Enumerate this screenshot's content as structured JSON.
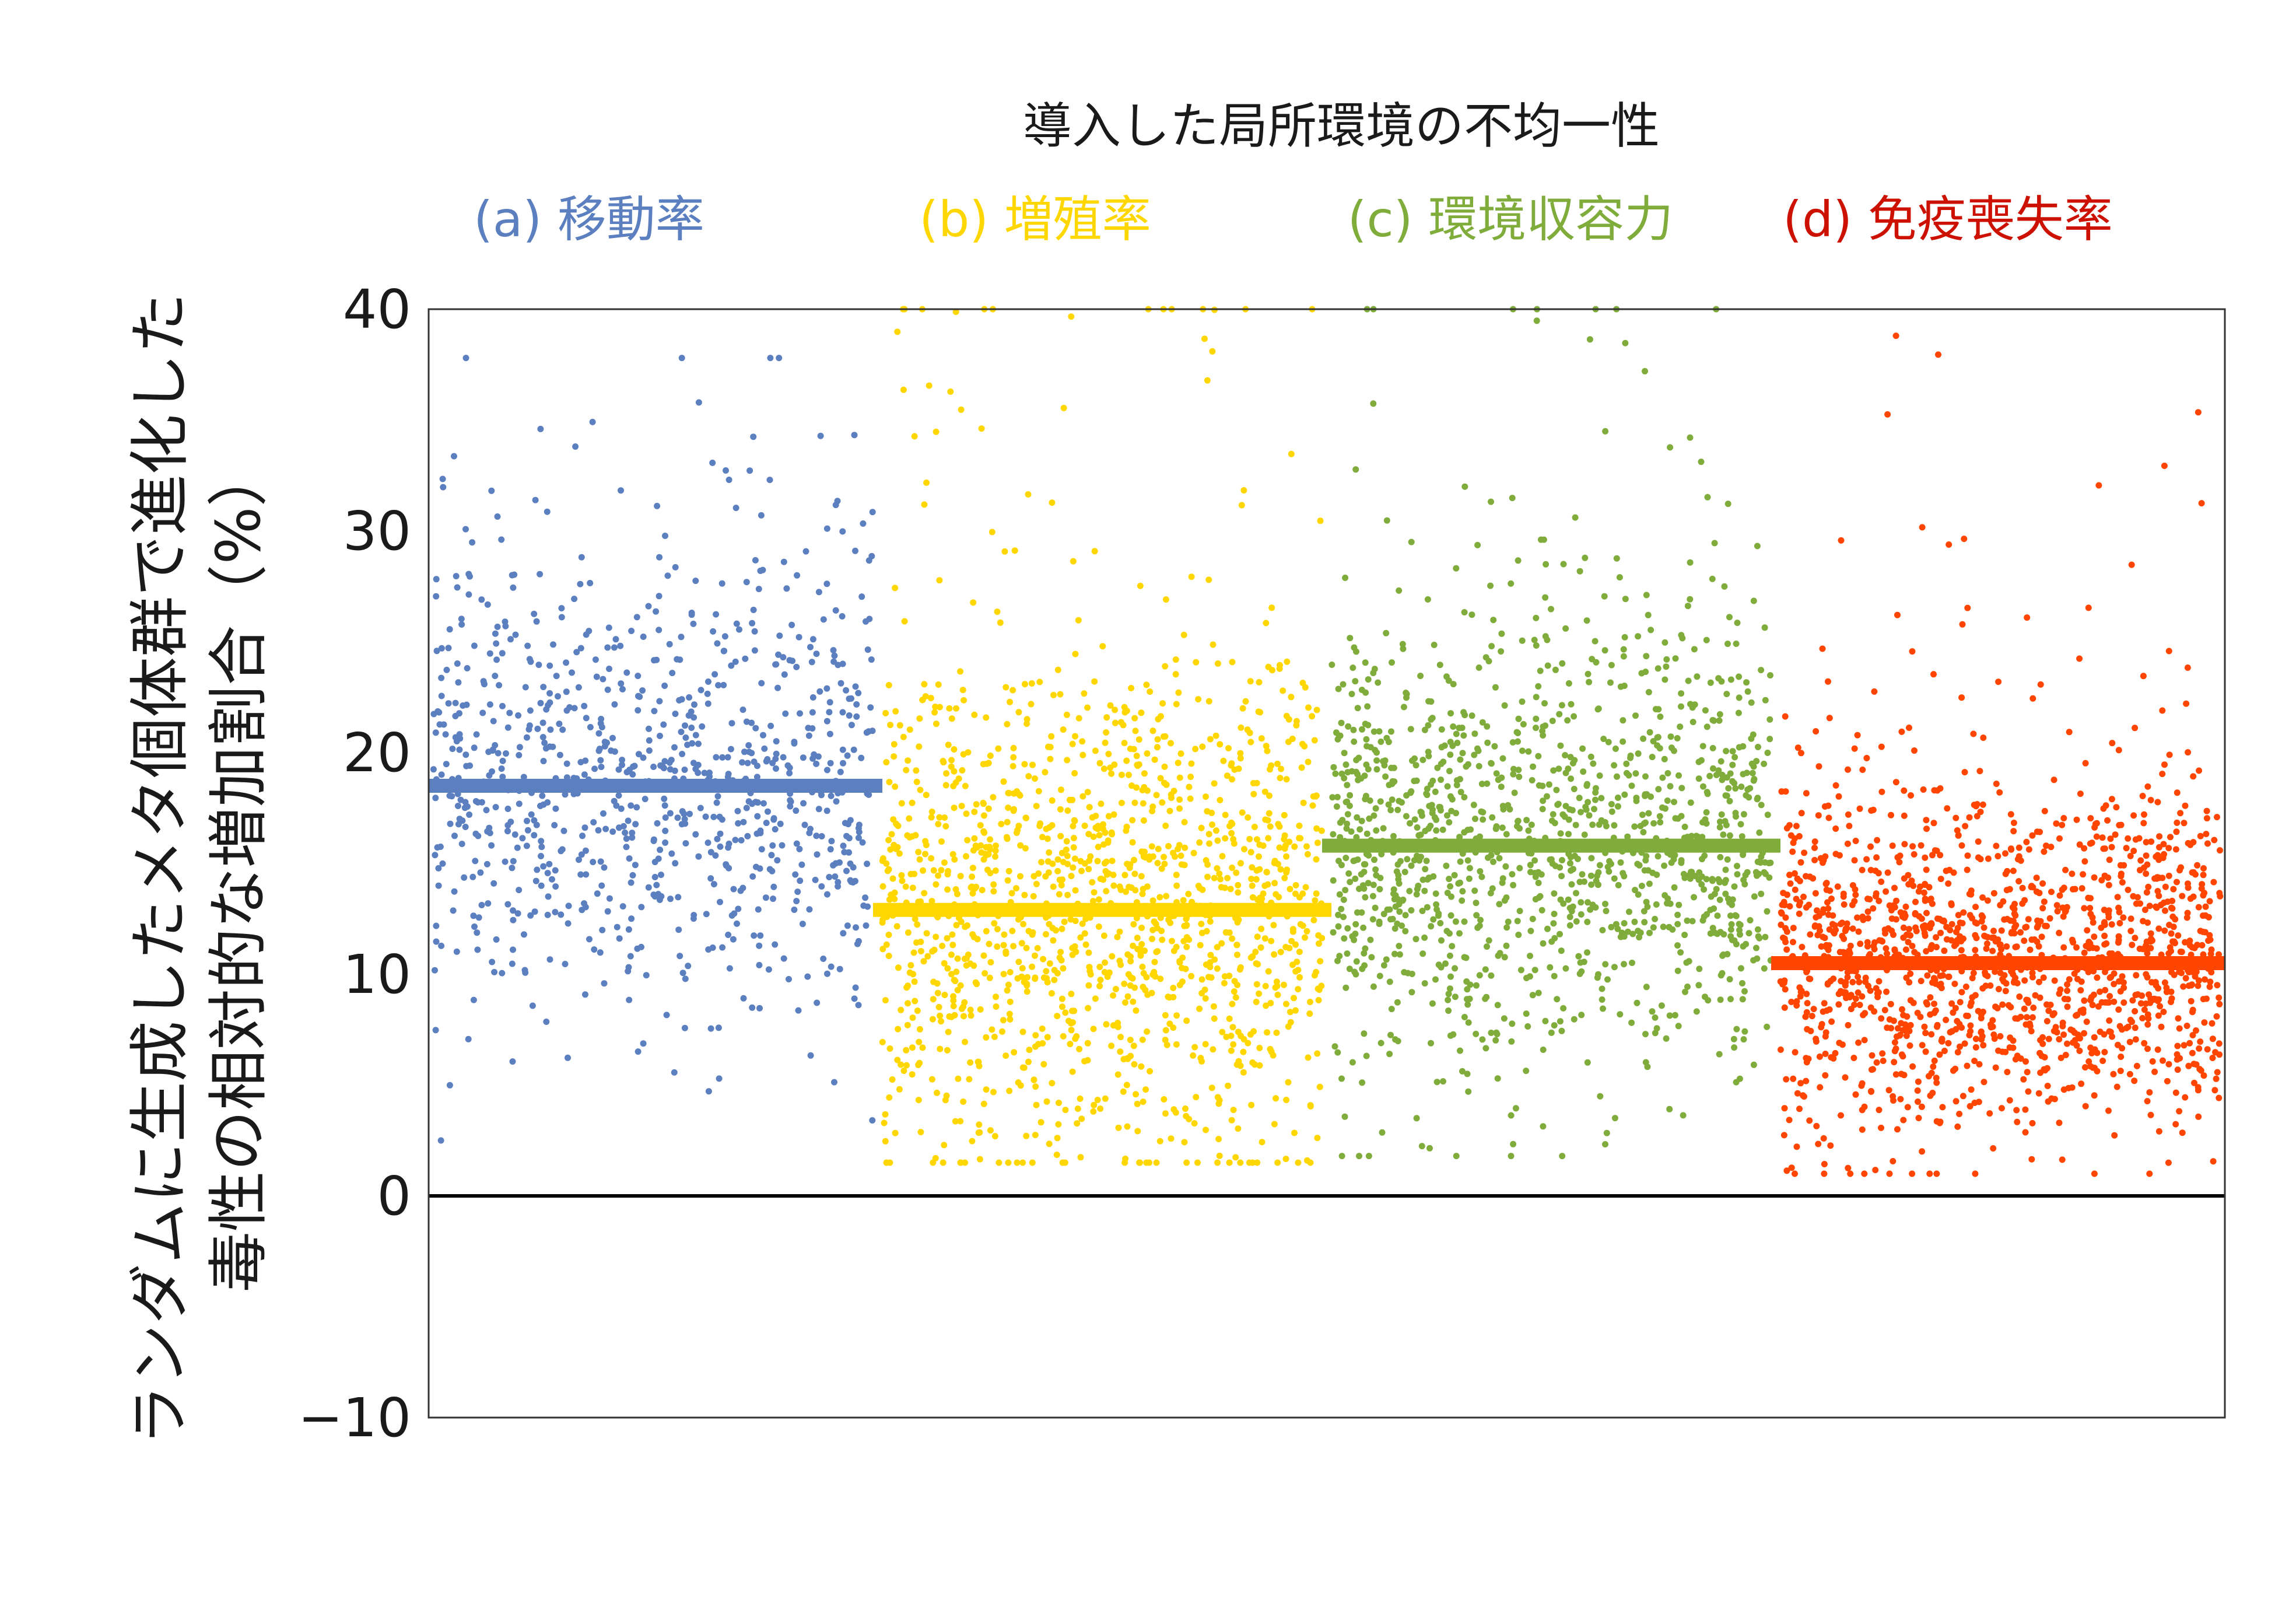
{
  "chart_data": {
    "type": "scatter",
    "title": "導入した局所環境の不均一性",
    "ylabel_lines": [
      "ランダムに生成したメタ個体群で進化した",
      "毒性の相対的な増加割合（%）"
    ],
    "xlabel": "",
    "ylim": [
      -10,
      40
    ],
    "yticks": [
      -10,
      0,
      10,
      20,
      30,
      40
    ],
    "ytick_labels": [
      "−10",
      "0",
      "10",
      "20",
      "30",
      "40"
    ],
    "zero_line": 0,
    "grid": false,
    "series": [
      {
        "name": "(a) 移動率",
        "color": "#5b7fbf",
        "mean": 18.5,
        "n": 900,
        "spread_sd": 7.0,
        "min_seen": 2.5,
        "max_seen": 37.8
      },
      {
        "name": "(b) 増殖率",
        "color": "#ffd700",
        "mean": 12.9,
        "n": 1400,
        "spread_sd": 7.5,
        "min_seen": 1.5,
        "max_seen": 40.0
      },
      {
        "name": "(c) 環境収容力",
        "color": "#7fac3a",
        "mean": 15.8,
        "n": 1300,
        "spread_sd": 6.5,
        "min_seen": 1.8,
        "max_seen": 40.0
      },
      {
        "name": "(d) 免疫喪失率",
        "color": "#ff4500",
        "mean": 10.5,
        "n": 1500,
        "spread_sd": 5.0,
        "min_seen": 1.0,
        "max_seen": 38.8
      }
    ]
  }
}
